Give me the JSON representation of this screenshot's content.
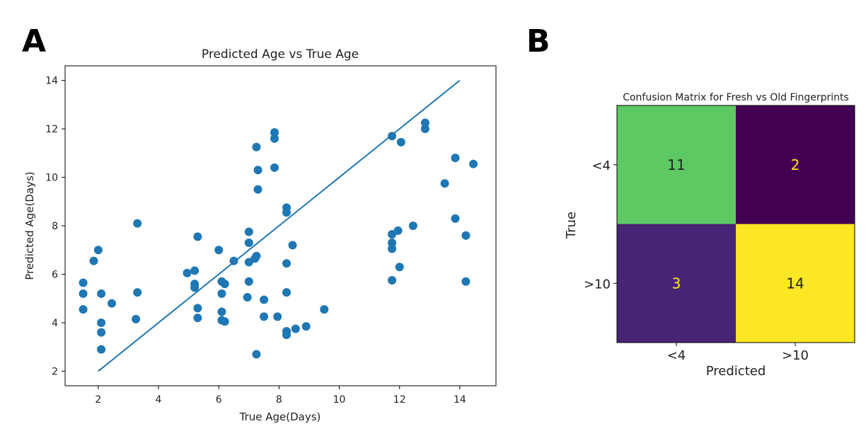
{
  "panels": {
    "a_label": "A",
    "b_label": "B"
  },
  "chart_data": [
    {
      "type": "scatter",
      "title": "Predicted Age vs True Age",
      "xlabel": "True Age(Days)",
      "ylabel": "Predicted Age(Days)",
      "xlim": [
        0.9,
        15.2
      ],
      "ylim": [
        1.4,
        14.6
      ],
      "xticks": [
        2,
        4,
        6,
        8,
        10,
        12,
        14
      ],
      "yticks": [
        2,
        4,
        6,
        8,
        10,
        12,
        14
      ],
      "color": "#1f77b4",
      "fit_line": {
        "x": [
          2,
          14
        ],
        "y": [
          2,
          14
        ]
      },
      "points": [
        [
          1.5,
          5.65
        ],
        [
          1.5,
          5.2
        ],
        [
          1.5,
          4.55
        ],
        [
          1.85,
          6.55
        ],
        [
          2.0,
          7.0
        ],
        [
          2.1,
          5.2
        ],
        [
          2.1,
          4.0
        ],
        [
          2.1,
          3.6
        ],
        [
          2.1,
          2.9
        ],
        [
          2.45,
          4.8
        ],
        [
          3.3,
          8.1
        ],
        [
          3.3,
          5.25
        ],
        [
          3.25,
          4.15
        ],
        [
          4.95,
          6.05
        ],
        [
          5.2,
          6.15
        ],
        [
          5.2,
          5.6
        ],
        [
          5.2,
          5.45
        ],
        [
          5.3,
          7.55
        ],
        [
          5.3,
          4.6
        ],
        [
          5.3,
          4.2
        ],
        [
          6.0,
          7.0
        ],
        [
          6.1,
          5.7
        ],
        [
          6.1,
          5.2
        ],
        [
          6.1,
          4.45
        ],
        [
          6.1,
          4.1
        ],
        [
          6.2,
          5.6
        ],
        [
          6.2,
          4.05
        ],
        [
          6.5,
          6.55
        ],
        [
          7.0,
          7.75
        ],
        [
          7.0,
          7.3
        ],
        [
          7.0,
          6.5
        ],
        [
          7.0,
          5.7
        ],
        [
          6.95,
          5.05
        ],
        [
          7.2,
          6.65
        ],
        [
          7.25,
          6.75
        ],
        [
          7.25,
          11.25
        ],
        [
          7.3,
          10.3
        ],
        [
          7.3,
          9.5
        ],
        [
          7.25,
          2.7
        ],
        [
          7.5,
          4.95
        ],
        [
          7.5,
          4.25
        ],
        [
          7.85,
          11.85
        ],
        [
          7.85,
          11.6
        ],
        [
          7.85,
          10.4
        ],
        [
          7.95,
          4.25
        ],
        [
          8.25,
          8.75
        ],
        [
          8.25,
          8.55
        ],
        [
          8.25,
          6.45
        ],
        [
          8.25,
          5.25
        ],
        [
          8.25,
          3.65
        ],
        [
          8.25,
          3.5
        ],
        [
          8.45,
          7.2
        ],
        [
          8.55,
          3.75
        ],
        [
          8.9,
          3.85
        ],
        [
          9.5,
          4.55
        ],
        [
          11.75,
          11.7
        ],
        [
          11.75,
          7.65
        ],
        [
          11.75,
          7.3
        ],
        [
          11.75,
          7.05
        ],
        [
          11.75,
          5.75
        ],
        [
          11.95,
          7.8
        ],
        [
          12.0,
          6.3
        ],
        [
          12.05,
          11.45
        ],
        [
          12.45,
          8.0
        ],
        [
          12.85,
          12.25
        ],
        [
          12.85,
          12.0
        ],
        [
          13.5,
          9.75
        ],
        [
          13.85,
          10.8
        ],
        [
          13.85,
          8.3
        ],
        [
          14.2,
          7.6
        ],
        [
          14.2,
          5.7
        ],
        [
          14.45,
          10.55
        ]
      ]
    },
    {
      "type": "heatmap",
      "title": "Confusion Matrix for Fresh vs Old Fingerprints",
      "xlabel": "Predicted",
      "ylabel": "True",
      "x_categories": [
        "<4",
        ">10"
      ],
      "y_categories": [
        "<4",
        ">10"
      ],
      "matrix": [
        [
          11,
          2
        ],
        [
          3,
          14
        ]
      ],
      "cell_colors": [
        [
          "#5ec962",
          "#440154"
        ],
        [
          "#482475",
          "#fde725"
        ]
      ],
      "text_colors": [
        [
          "#222222",
          "#fde725"
        ],
        [
          "#fde725",
          "#222222"
        ]
      ]
    }
  ]
}
